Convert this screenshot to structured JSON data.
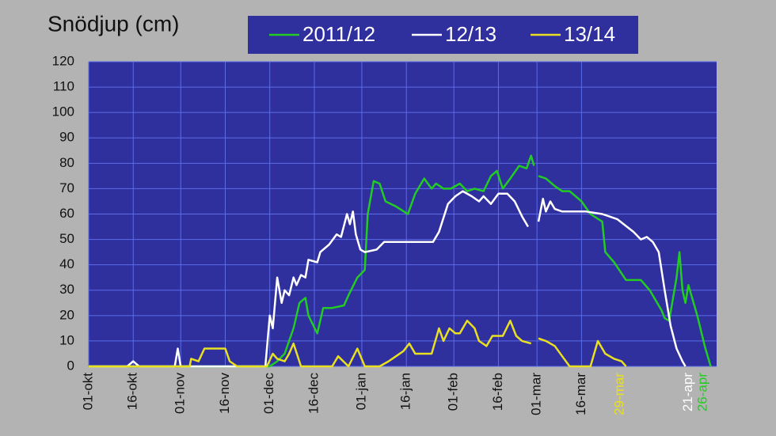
{
  "chart_data": {
    "type": "line",
    "title": "Snödjup (cm)",
    "legend": "top",
    "grid": true,
    "ylim": [
      0,
      120
    ],
    "yticks": [
      0,
      10,
      20,
      30,
      40,
      50,
      60,
      70,
      80,
      90,
      100,
      110,
      120
    ],
    "xlim": [
      0,
      211.5
    ],
    "xticks": [
      {
        "value": 0,
        "label": "01-okt"
      },
      {
        "value": 15,
        "label": "16-okt"
      },
      {
        "value": 31,
        "label": "01-nov"
      },
      {
        "value": 46,
        "label": "16-nov"
      },
      {
        "value": 61,
        "label": "01-dec"
      },
      {
        "value": 76,
        "label": "16-dec"
      },
      {
        "value": 92,
        "label": "01-jan"
      },
      {
        "value": 107,
        "label": "16-jan"
      },
      {
        "value": 123,
        "label": "01-feb"
      },
      {
        "value": 138,
        "label": "16-feb"
      },
      {
        "value": 151,
        "label": "01-mar"
      },
      {
        "value": 166,
        "label": "16-mar"
      },
      {
        "value": 179,
        "label": "29-mar",
        "color": "#e8e020"
      },
      {
        "value": 202,
        "label": "21-apr",
        "color": "#ffffff"
      },
      {
        "value": 207,
        "label": "26-apr",
        "color": "#22cc22"
      }
    ],
    "series": [
      {
        "name": "2011/12",
        "color": "#22cc22",
        "x": [
          0,
          61,
          63.5,
          66,
          69,
          71,
          73,
          74,
          77,
          79,
          82,
          86,
          87.5,
          90.5,
          93,
          94,
          96,
          98,
          100,
          103.5,
          107.5,
          110,
          113,
          115.5,
          117,
          119.5,
          122,
          125,
          127.5,
          130,
          133,
          135.5,
          137.5,
          139.5,
          142,
          145,
          147.5,
          149,
          150,
          150.5,
          151.5,
          154,
          157,
          159.5,
          162,
          166,
          169,
          173,
          174,
          177,
          181,
          186,
          189,
          193,
          194,
          195.5,
          197,
          198,
          199,
          200,
          201,
          202,
          205,
          207.5,
          209.5
        ],
        "values": [
          0,
          0,
          2,
          5,
          15,
          25,
          27,
          20,
          13,
          23,
          23,
          24,
          28,
          35,
          38,
          60,
          73,
          72,
          65,
          63,
          60,
          68,
          74,
          70,
          72,
          70,
          70,
          72,
          69,
          70,
          69,
          75,
          77,
          70,
          74,
          79,
          78,
          83,
          79,
          null,
          75,
          74,
          71,
          69,
          69,
          65,
          60,
          57,
          45,
          41,
          34,
          34,
          30,
          22,
          19,
          18,
          28,
          35,
          45,
          30,
          25,
          32,
          20,
          8,
          0
        ]
      },
      {
        "name": "12/13",
        "color": "#ffffff",
        "x": [
          0,
          6,
          13,
          15,
          17,
          29,
          30,
          31,
          59.5,
          61,
          62,
          63.5,
          65,
          66,
          67.5,
          69,
          70,
          71.5,
          73,
          74,
          77,
          78,
          81,
          83.5,
          85,
          87,
          88,
          89,
          90,
          91.5,
          93,
          97,
          99.5,
          103.5,
          116,
          118,
          121,
          123.5,
          126,
          129,
          131.5,
          133,
          135.5,
          138,
          141,
          143.5,
          146,
          148,
          150,
          151.5,
          153,
          154,
          155.5,
          157,
          159.5,
          167.5,
          173,
          178,
          183.5,
          186,
          188,
          190,
          192,
          194,
          196,
          198,
          200,
          201
        ],
        "values": [
          0,
          0,
          0,
          2,
          0,
          0,
          7,
          0,
          0,
          20,
          15,
          35,
          25,
          30,
          28,
          35,
          32,
          36,
          35,
          42,
          41,
          45,
          48,
          52,
          51,
          60,
          56,
          61,
          52,
          46,
          45,
          46,
          49,
          49,
          49,
          53,
          64,
          67,
          69,
          67,
          65,
          67,
          64,
          68,
          68,
          65,
          59,
          55,
          null,
          57,
          66,
          61,
          65,
          62,
          61,
          61,
          60,
          58,
          53,
          50,
          51,
          49,
          45,
          30,
          16,
          7,
          2,
          0
        ]
      },
      {
        "name": "13/14",
        "color": "#e8e020",
        "x": [
          0,
          34,
          34.5,
          37,
          39,
          42,
          46,
          47.5,
          50,
          60,
          62,
          63.5,
          66,
          67.5,
          69,
          71.5,
          82,
          84,
          87.5,
          90.5,
          93,
          98,
          101,
          103.5,
          106,
          108,
          110,
          115.5,
          118,
          119.5,
          121.5,
          123.5,
          125,
          127.5,
          130,
          131.5,
          134,
          136,
          139.5,
          142,
          144,
          146,
          149,
          150,
          151.5,
          154,
          157,
          159.5,
          162,
          169,
          171.5,
          174,
          177,
          179.5,
          181
        ],
        "values": [
          0,
          0,
          3,
          2,
          7,
          7,
          7,
          2,
          0,
          0,
          5,
          3,
          2,
          5,
          9,
          0,
          0,
          4,
          0,
          7,
          0,
          0,
          2,
          4,
          6,
          9,
          5,
          5,
          15,
          10,
          15,
          13,
          13,
          18,
          15,
          10,
          8,
          12,
          12,
          18,
          12,
          10,
          9,
          null,
          11,
          10,
          8,
          4,
          0,
          0,
          10,
          5,
          3,
          2,
          0
        ]
      }
    ]
  }
}
